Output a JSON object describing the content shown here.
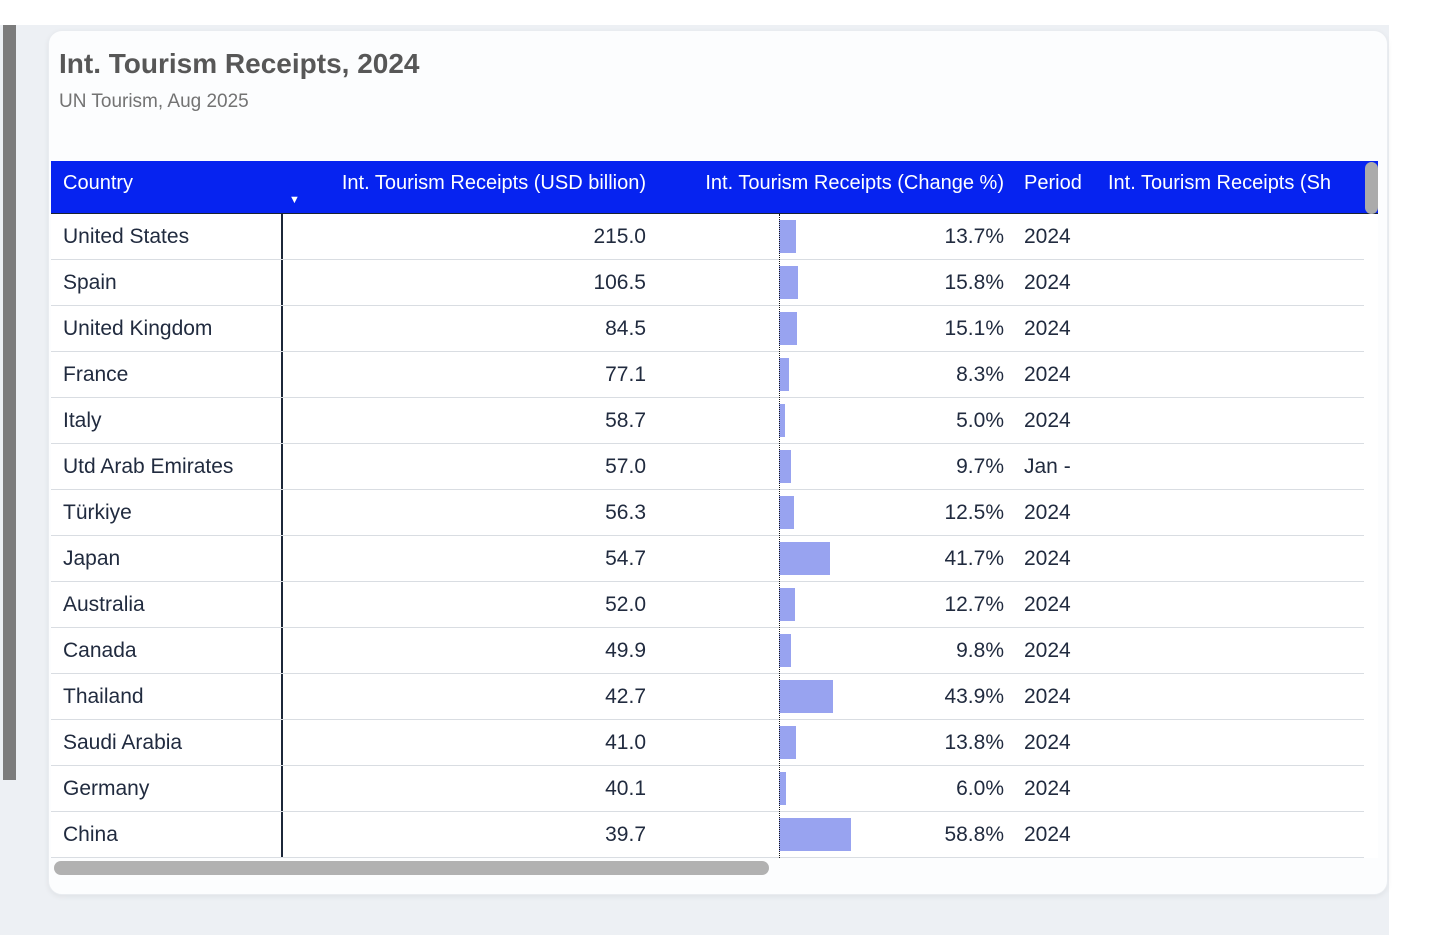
{
  "card": {
    "title": "Int. Tourism Receipts, 2024",
    "subtitle": "UN Tourism, Aug 2025"
  },
  "icons": {
    "sort_descending_icon": "▼"
  },
  "colors": {
    "header_background": "#0623f0",
    "header_text": "#ffffff",
    "row_text": "#212b3f",
    "data_bar": "#98a3f0",
    "gridline": "#d9dde2",
    "column_separator": "#1c2739",
    "card_background": "#fcfdfe",
    "canvas_background": "#edf0f4",
    "scrollbar_thumb": "#ababab"
  },
  "table": {
    "columns": {
      "country": "Country",
      "usd": "Int. Tourism Receipts (USD billion)",
      "change": "Int. Tourism Receipts (Change %)",
      "period": "Period",
      "share": "Int. Tourism Receipts (Sh"
    },
    "sort": {
      "column": "Int. Tourism Receipts (USD billion)",
      "direction": "descending"
    },
    "rows": [
      {
        "country": "United States",
        "usd": "215.0",
        "change": "13.7%",
        "change_value": 13.7,
        "period": "2024",
        "share": ""
      },
      {
        "country": "Spain",
        "usd": "106.5",
        "change": "15.8%",
        "change_value": 15.8,
        "period": "2024",
        "share": ""
      },
      {
        "country": "United Kingdom",
        "usd": "84.5",
        "change": "15.1%",
        "change_value": 15.1,
        "period": "2024",
        "share": ""
      },
      {
        "country": "France",
        "usd": "77.1",
        "change": "8.3%",
        "change_value": 8.3,
        "period": "2024",
        "share": ""
      },
      {
        "country": "Italy",
        "usd": "58.7",
        "change": "5.0%",
        "change_value": 5.0,
        "period": "2024",
        "share": ""
      },
      {
        "country": "Utd Arab Emirates",
        "usd": "57.0",
        "change": "9.7%",
        "change_value": 9.7,
        "period": "Jan -",
        "share": ""
      },
      {
        "country": "Türkiye",
        "usd": "56.3",
        "change": "12.5%",
        "change_value": 12.5,
        "period": "2024",
        "share": ""
      },
      {
        "country": "Japan",
        "usd": "54.7",
        "change": "41.7%",
        "change_value": 41.7,
        "period": "2024",
        "share": ""
      },
      {
        "country": "Australia",
        "usd": "52.0",
        "change": "12.7%",
        "change_value": 12.7,
        "period": "2024",
        "share": ""
      },
      {
        "country": "Canada",
        "usd": "49.9",
        "change": "9.8%",
        "change_value": 9.8,
        "period": "2024",
        "share": ""
      },
      {
        "country": "Thailand",
        "usd": "42.7",
        "change": "43.9%",
        "change_value": 43.9,
        "period": "2024",
        "share": ""
      },
      {
        "country": "Saudi Arabia",
        "usd": "41.0",
        "change": "13.8%",
        "change_value": 13.8,
        "period": "2024",
        "share": ""
      },
      {
        "country": "Germany",
        "usd": "40.1",
        "change": "6.0%",
        "change_value": 6.0,
        "period": "2024",
        "share": ""
      },
      {
        "country": "China",
        "usd": "39.7",
        "change": "58.8%",
        "change_value": 58.8,
        "period": "2024",
        "share": ""
      }
    ]
  },
  "chart_data": {
    "type": "table",
    "title": "Int. Tourism Receipts, 2024",
    "subtitle": "UN Tourism, Aug 2025",
    "columns": [
      "Country",
      "Int. Tourism Receipts (USD billion)",
      "Int. Tourism Receipts (Change %)",
      "Period",
      "Int. Tourism Receipts (Sh"
    ],
    "sorted_by": "Int. Tourism Receipts (USD billion)",
    "sort_direction": "descending",
    "embedded_bar_column": "Int. Tourism Receipts (Change %)",
    "bar_axis": "dotted zero line, bars extend right",
    "bar_color": "#98a3f0",
    "rows": [
      [
        "United States",
        215.0,
        13.7,
        "2024"
      ],
      [
        "Spain",
        106.5,
        15.8,
        "2024"
      ],
      [
        "United Kingdom",
        84.5,
        15.1,
        "2024"
      ],
      [
        "France",
        77.1,
        8.3,
        "2024"
      ],
      [
        "Italy",
        58.7,
        5.0,
        "2024"
      ],
      [
        "Utd Arab Emirates",
        57.0,
        9.7,
        "Jan -"
      ],
      [
        "Türkiye",
        56.3,
        12.5,
        "2024"
      ],
      [
        "Japan",
        54.7,
        41.7,
        "2024"
      ],
      [
        "Australia",
        52.0,
        12.7,
        "2024"
      ],
      [
        "Canada",
        49.9,
        9.8,
        "2024"
      ],
      [
        "Thailand",
        42.7,
        43.9,
        "2024"
      ],
      [
        "Saudi Arabia",
        41.0,
        13.8,
        "2024"
      ],
      [
        "Germany",
        40.1,
        6.0,
        "2024"
      ],
      [
        "China",
        39.7,
        58.8,
        "2024"
      ]
    ]
  }
}
